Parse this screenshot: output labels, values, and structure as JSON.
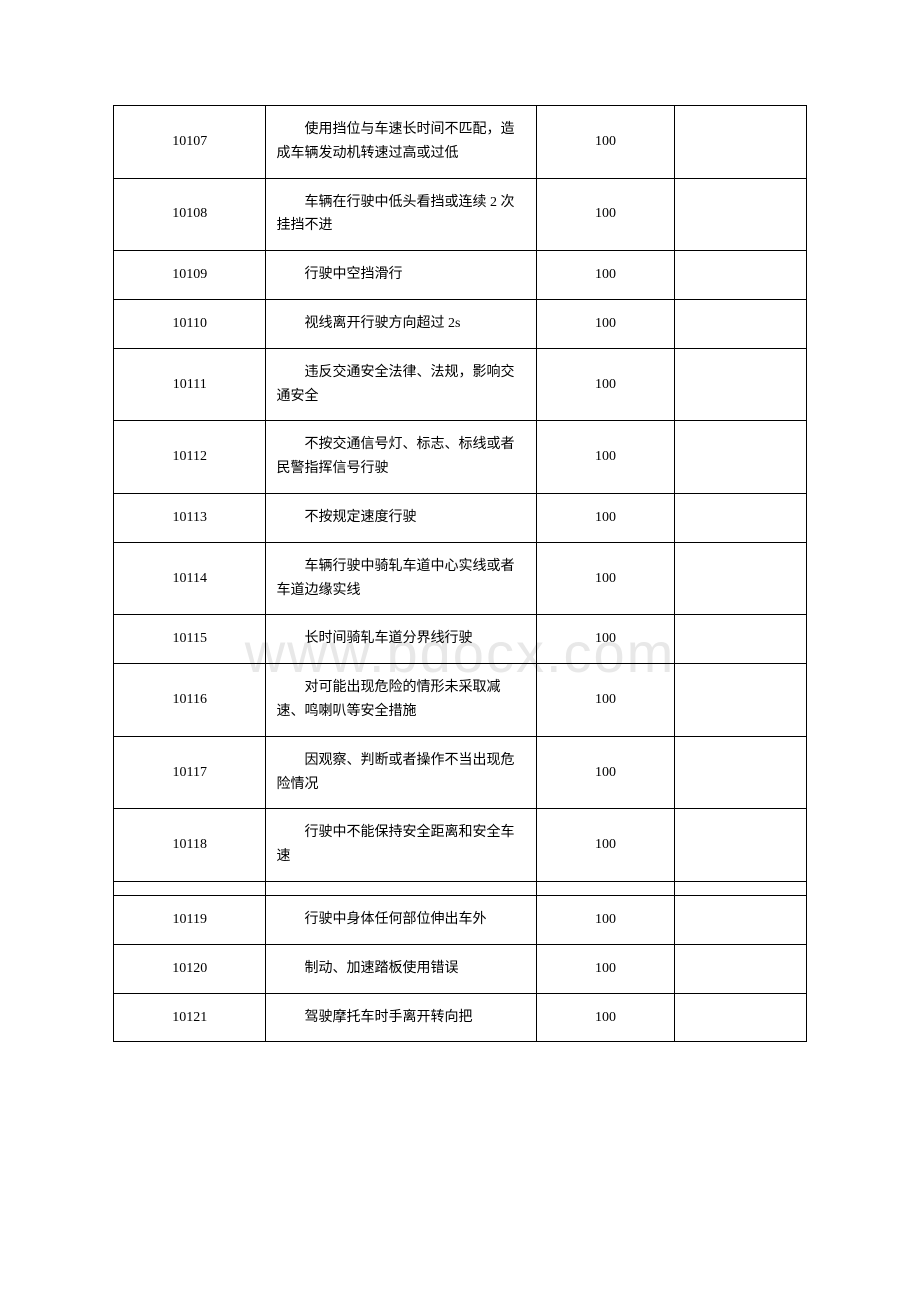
{
  "watermark": "www.bdocx.com",
  "table": {
    "rows": [
      {
        "code": "10107",
        "desc": "使用挡位与车速长时间不匹配，造成车辆发动机转速过高或过低",
        "score": "100"
      },
      {
        "code": "10108",
        "desc": "车辆在行驶中低头看挡或连续 2 次挂挡不进",
        "score": "100"
      },
      {
        "code": "10109",
        "desc": "行驶中空挡滑行",
        "score": "100"
      },
      {
        "code": "10110",
        "desc": "视线离开行驶方向超过 2s",
        "score": "100"
      },
      {
        "code": "10111",
        "desc": "违反交通安全法律、法规，影响交通安全",
        "score": "100"
      },
      {
        "code": "10112",
        "desc": "不按交通信号灯、标志、标线或者民警指挥信号行驶",
        "score": "100"
      },
      {
        "code": "10113",
        "desc": "不按规定速度行驶",
        "score": "100"
      },
      {
        "code": "10114",
        "desc": "车辆行驶中骑轧车道中心实线或者车道边缘实线",
        "score": "100"
      },
      {
        "code": "10115",
        "desc": "长时间骑轧车道分界线行驶",
        "score": "100"
      },
      {
        "code": "10116",
        "desc": "对可能出现危险的情形未采取减速、鸣喇叭等安全措施",
        "score": "100"
      },
      {
        "code": "10117",
        "desc": "因观察、判断或者操作不当出现危险情况",
        "score": "100"
      },
      {
        "code": "10118",
        "desc": "行驶中不能保持安全距离和安全车速",
        "score": "100"
      },
      {
        "spacer": true
      },
      {
        "code": "10119",
        "desc": "行驶中身体任何部位伸出车外",
        "score": "100"
      },
      {
        "code": "10120",
        "desc": "制动、加速踏板使用错误",
        "score": "100"
      },
      {
        "code": "10121",
        "desc": "驾驶摩托车时手离开转向把",
        "score": "100"
      }
    ]
  }
}
